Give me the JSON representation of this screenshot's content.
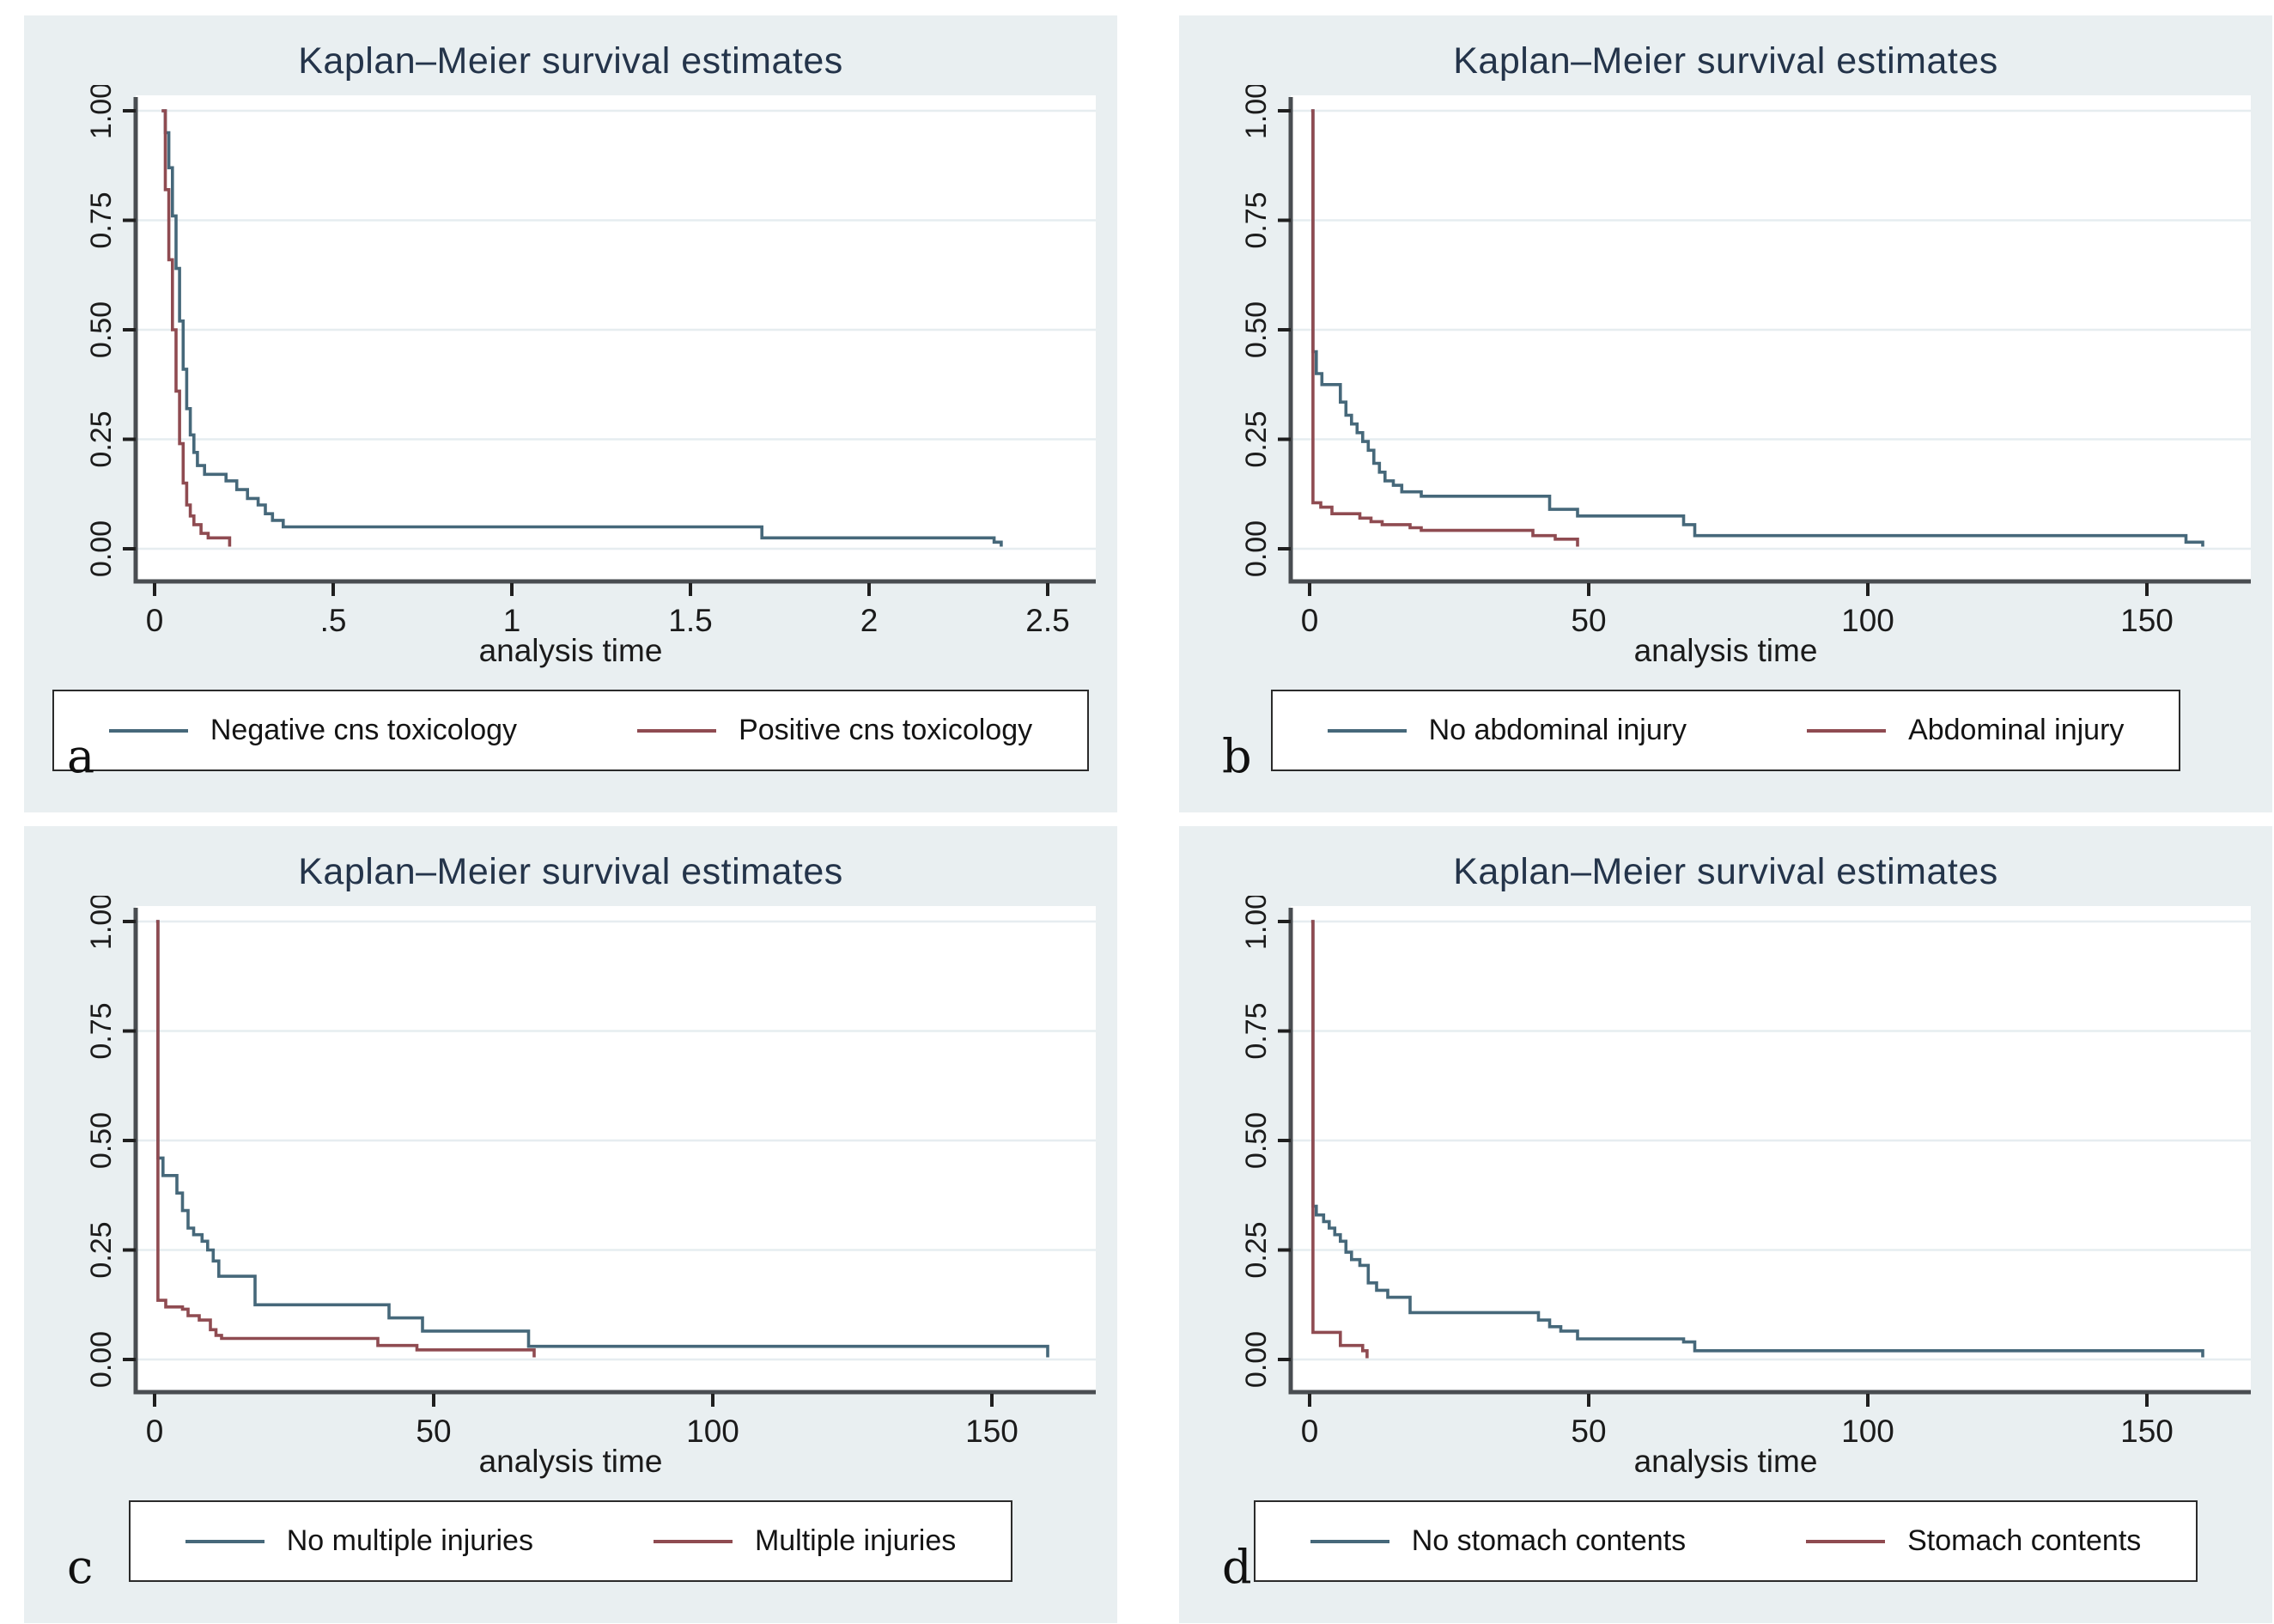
{
  "figure": {
    "description": "Four-panel Kaplan-Meier survival estimate plots (Stata style)"
  },
  "colors": {
    "page_bg": "#ffffff",
    "panel_bg": "#e9eff1",
    "plot_bg": "#ffffff",
    "grid": "#e6edf0",
    "axis": "#494d51",
    "tick": "#1f1f1f",
    "title": "#24344a",
    "text": "#1b1b1b",
    "navy": "#46687a",
    "maroon": "#8f4b51"
  },
  "chart_data": [
    {
      "type": "line",
      "subtype": "kaplan-meier-step",
      "letter": "a",
      "title": "Kaplan–Meier survival estimates",
      "xlabel": "analysis time",
      "ylabel": "",
      "xlim": [
        0,
        2.5
      ],
      "ylim": [
        0,
        1
      ],
      "xticks": [
        0,
        0.5,
        1,
        1.5,
        2,
        2.5
      ],
      "xtick_labels": [
        "0",
        ".5",
        "1",
        "1.5",
        "2",
        "2.5"
      ],
      "yticks": [
        0,
        0.25,
        0.5,
        0.75,
        1
      ],
      "ytick_labels": [
        "0.00",
        "0.25",
        "0.50",
        "0.75",
        "1.00"
      ],
      "grid": "horizontal",
      "legend_position": "bottom",
      "series": [
        {
          "name": "Negative cns toxicology",
          "color": "navy",
          "points": [
            [
              0.02,
              1.0
            ],
            [
              0.03,
              0.95
            ],
            [
              0.04,
              0.87
            ],
            [
              0.05,
              0.76
            ],
            [
              0.06,
              0.64
            ],
            [
              0.07,
              0.52
            ],
            [
              0.08,
              0.41
            ],
            [
              0.09,
              0.32
            ],
            [
              0.1,
              0.26
            ],
            [
              0.11,
              0.22
            ],
            [
              0.12,
              0.19
            ],
            [
              0.14,
              0.17
            ],
            [
              0.2,
              0.155
            ],
            [
              0.23,
              0.135
            ],
            [
              0.26,
              0.115
            ],
            [
              0.29,
              0.1
            ],
            [
              0.31,
              0.08
            ],
            [
              0.33,
              0.065
            ],
            [
              0.36,
              0.05
            ],
            [
              1.7,
              0.025
            ],
            [
              2.35,
              0.015
            ],
            [
              2.37,
              0.005
            ]
          ]
        },
        {
          "name": "Positive cns toxicology",
          "color": "maroon",
          "points": [
            [
              0.02,
              1.0
            ],
            [
              0.03,
              0.82
            ],
            [
              0.04,
              0.66
            ],
            [
              0.05,
              0.5
            ],
            [
              0.06,
              0.36
            ],
            [
              0.07,
              0.24
            ],
            [
              0.08,
              0.15
            ],
            [
              0.09,
              0.1
            ],
            [
              0.1,
              0.075
            ],
            [
              0.11,
              0.055
            ],
            [
              0.13,
              0.035
            ],
            [
              0.15,
              0.025
            ],
            [
              0.21,
              0.005
            ]
          ]
        }
      ]
    },
    {
      "type": "line",
      "subtype": "kaplan-meier-step",
      "letter": "b",
      "title": "Kaplan–Meier survival estimates",
      "xlabel": "analysis time",
      "ylabel": "",
      "xlim": [
        0,
        160
      ],
      "ylim": [
        0,
        1
      ],
      "xticks": [
        0,
        50,
        100,
        150
      ],
      "xtick_labels": [
        "0",
        "50",
        "100",
        "150"
      ],
      "yticks": [
        0,
        0.25,
        0.5,
        0.75,
        1
      ],
      "ytick_labels": [
        "0.00",
        "0.25",
        "0.50",
        "0.75",
        "1.00"
      ],
      "grid": "horizontal",
      "legend_position": "bottom",
      "series": [
        {
          "name": "No abdominal injury",
          "color": "navy",
          "points": [
            [
              0.3,
              1.0
            ],
            [
              0.6,
              0.45
            ],
            [
              1.2,
              0.4
            ],
            [
              2.2,
              0.375
            ],
            [
              5.5,
              0.335
            ],
            [
              6.5,
              0.305
            ],
            [
              7.5,
              0.285
            ],
            [
              8.5,
              0.265
            ],
            [
              9.5,
              0.245
            ],
            [
              10.5,
              0.225
            ],
            [
              11.5,
              0.195
            ],
            [
              12.5,
              0.175
            ],
            [
              13.5,
              0.155
            ],
            [
              15,
              0.145
            ],
            [
              16.5,
              0.13
            ],
            [
              20,
              0.12
            ],
            [
              43,
              0.09
            ],
            [
              48,
              0.075
            ],
            [
              67,
              0.055
            ],
            [
              69,
              0.03
            ],
            [
              157,
              0.015
            ],
            [
              160,
              0.005
            ]
          ]
        },
        {
          "name": "Abdominal injury",
          "color": "maroon",
          "points": [
            [
              0.3,
              1.0
            ],
            [
              0.6,
              0.105
            ],
            [
              2,
              0.095
            ],
            [
              4,
              0.08
            ],
            [
              9,
              0.07
            ],
            [
              11,
              0.062
            ],
            [
              13,
              0.055
            ],
            [
              18,
              0.048
            ],
            [
              20,
              0.042
            ],
            [
              40,
              0.03
            ],
            [
              44,
              0.022
            ],
            [
              48,
              0.005
            ]
          ]
        }
      ]
    },
    {
      "type": "line",
      "subtype": "kaplan-meier-step",
      "letter": "c",
      "title": "Kaplan–Meier survival estimates",
      "xlabel": "analysis time",
      "ylabel": "",
      "xlim": [
        0,
        160
      ],
      "ylim": [
        0,
        1
      ],
      "xticks": [
        0,
        50,
        100,
        150
      ],
      "xtick_labels": [
        "0",
        "50",
        "100",
        "150"
      ],
      "yticks": [
        0,
        0.25,
        0.5,
        0.75,
        1
      ],
      "ytick_labels": [
        "0.00",
        "0.25",
        "0.50",
        "0.75",
        "1.00"
      ],
      "grid": "horizontal",
      "legend_position": "bottom",
      "series": [
        {
          "name": "No multiple injuries",
          "color": "navy",
          "points": [
            [
              0.3,
              1.0
            ],
            [
              0.6,
              0.46
            ],
            [
              1.5,
              0.42
            ],
            [
              4,
              0.38
            ],
            [
              5,
              0.34
            ],
            [
              6,
              0.3
            ],
            [
              7,
              0.285
            ],
            [
              8.5,
              0.27
            ],
            [
              9.5,
              0.25
            ],
            [
              10.5,
              0.225
            ],
            [
              11.5,
              0.19
            ],
            [
              18,
              0.125
            ],
            [
              42,
              0.095
            ],
            [
              48,
              0.065
            ],
            [
              67,
              0.03
            ],
            [
              160,
              0.005
            ]
          ]
        },
        {
          "name": "Multiple injuries",
          "color": "maroon",
          "points": [
            [
              0.3,
              1.0
            ],
            [
              0.6,
              0.135
            ],
            [
              2,
              0.12
            ],
            [
              5,
              0.115
            ],
            [
              6,
              0.1
            ],
            [
              8,
              0.09
            ],
            [
              10,
              0.068
            ],
            [
              11,
              0.055
            ],
            [
              12,
              0.048
            ],
            [
              40,
              0.032
            ],
            [
              47,
              0.022
            ],
            [
              68,
              0.005
            ]
          ]
        }
      ]
    },
    {
      "type": "line",
      "subtype": "kaplan-meier-step",
      "letter": "d",
      "title": "Kaplan–Meier survival estimates",
      "xlabel": "analysis time",
      "ylabel": "",
      "xlim": [
        0,
        160
      ],
      "ylim": [
        0,
        1
      ],
      "xticks": [
        0,
        50,
        100,
        150
      ],
      "xtick_labels": [
        "0",
        "50",
        "100",
        "150"
      ],
      "yticks": [
        0,
        0.25,
        0.5,
        0.75,
        1
      ],
      "ytick_labels": [
        "0.00",
        "0.25",
        "0.50",
        "0.75",
        "1.00"
      ],
      "grid": "horizontal",
      "legend_position": "bottom",
      "series": [
        {
          "name": "No stomach contents",
          "color": "navy",
          "points": [
            [
              0.3,
              1.0
            ],
            [
              0.6,
              0.35
            ],
            [
              1.2,
              0.33
            ],
            [
              2.5,
              0.315
            ],
            [
              3.5,
              0.3
            ],
            [
              4.5,
              0.285
            ],
            [
              5.5,
              0.27
            ],
            [
              6.5,
              0.245
            ],
            [
              7.5,
              0.228
            ],
            [
              9,
              0.215
            ],
            [
              10.5,
              0.175
            ],
            [
              12,
              0.158
            ],
            [
              14,
              0.142
            ],
            [
              18,
              0.107
            ],
            [
              41,
              0.09
            ],
            [
              43,
              0.075
            ],
            [
              45,
              0.065
            ],
            [
              48,
              0.047
            ],
            [
              67,
              0.04
            ],
            [
              69,
              0.02
            ],
            [
              160,
              0.005
            ]
          ]
        },
        {
          "name": "Stomach contents",
          "color": "maroon",
          "points": [
            [
              0.3,
              1.0
            ],
            [
              0.6,
              0.062
            ],
            [
              5.5,
              0.032
            ],
            [
              9.5,
              0.02
            ],
            [
              10.3,
              0.003
            ]
          ]
        }
      ]
    }
  ]
}
